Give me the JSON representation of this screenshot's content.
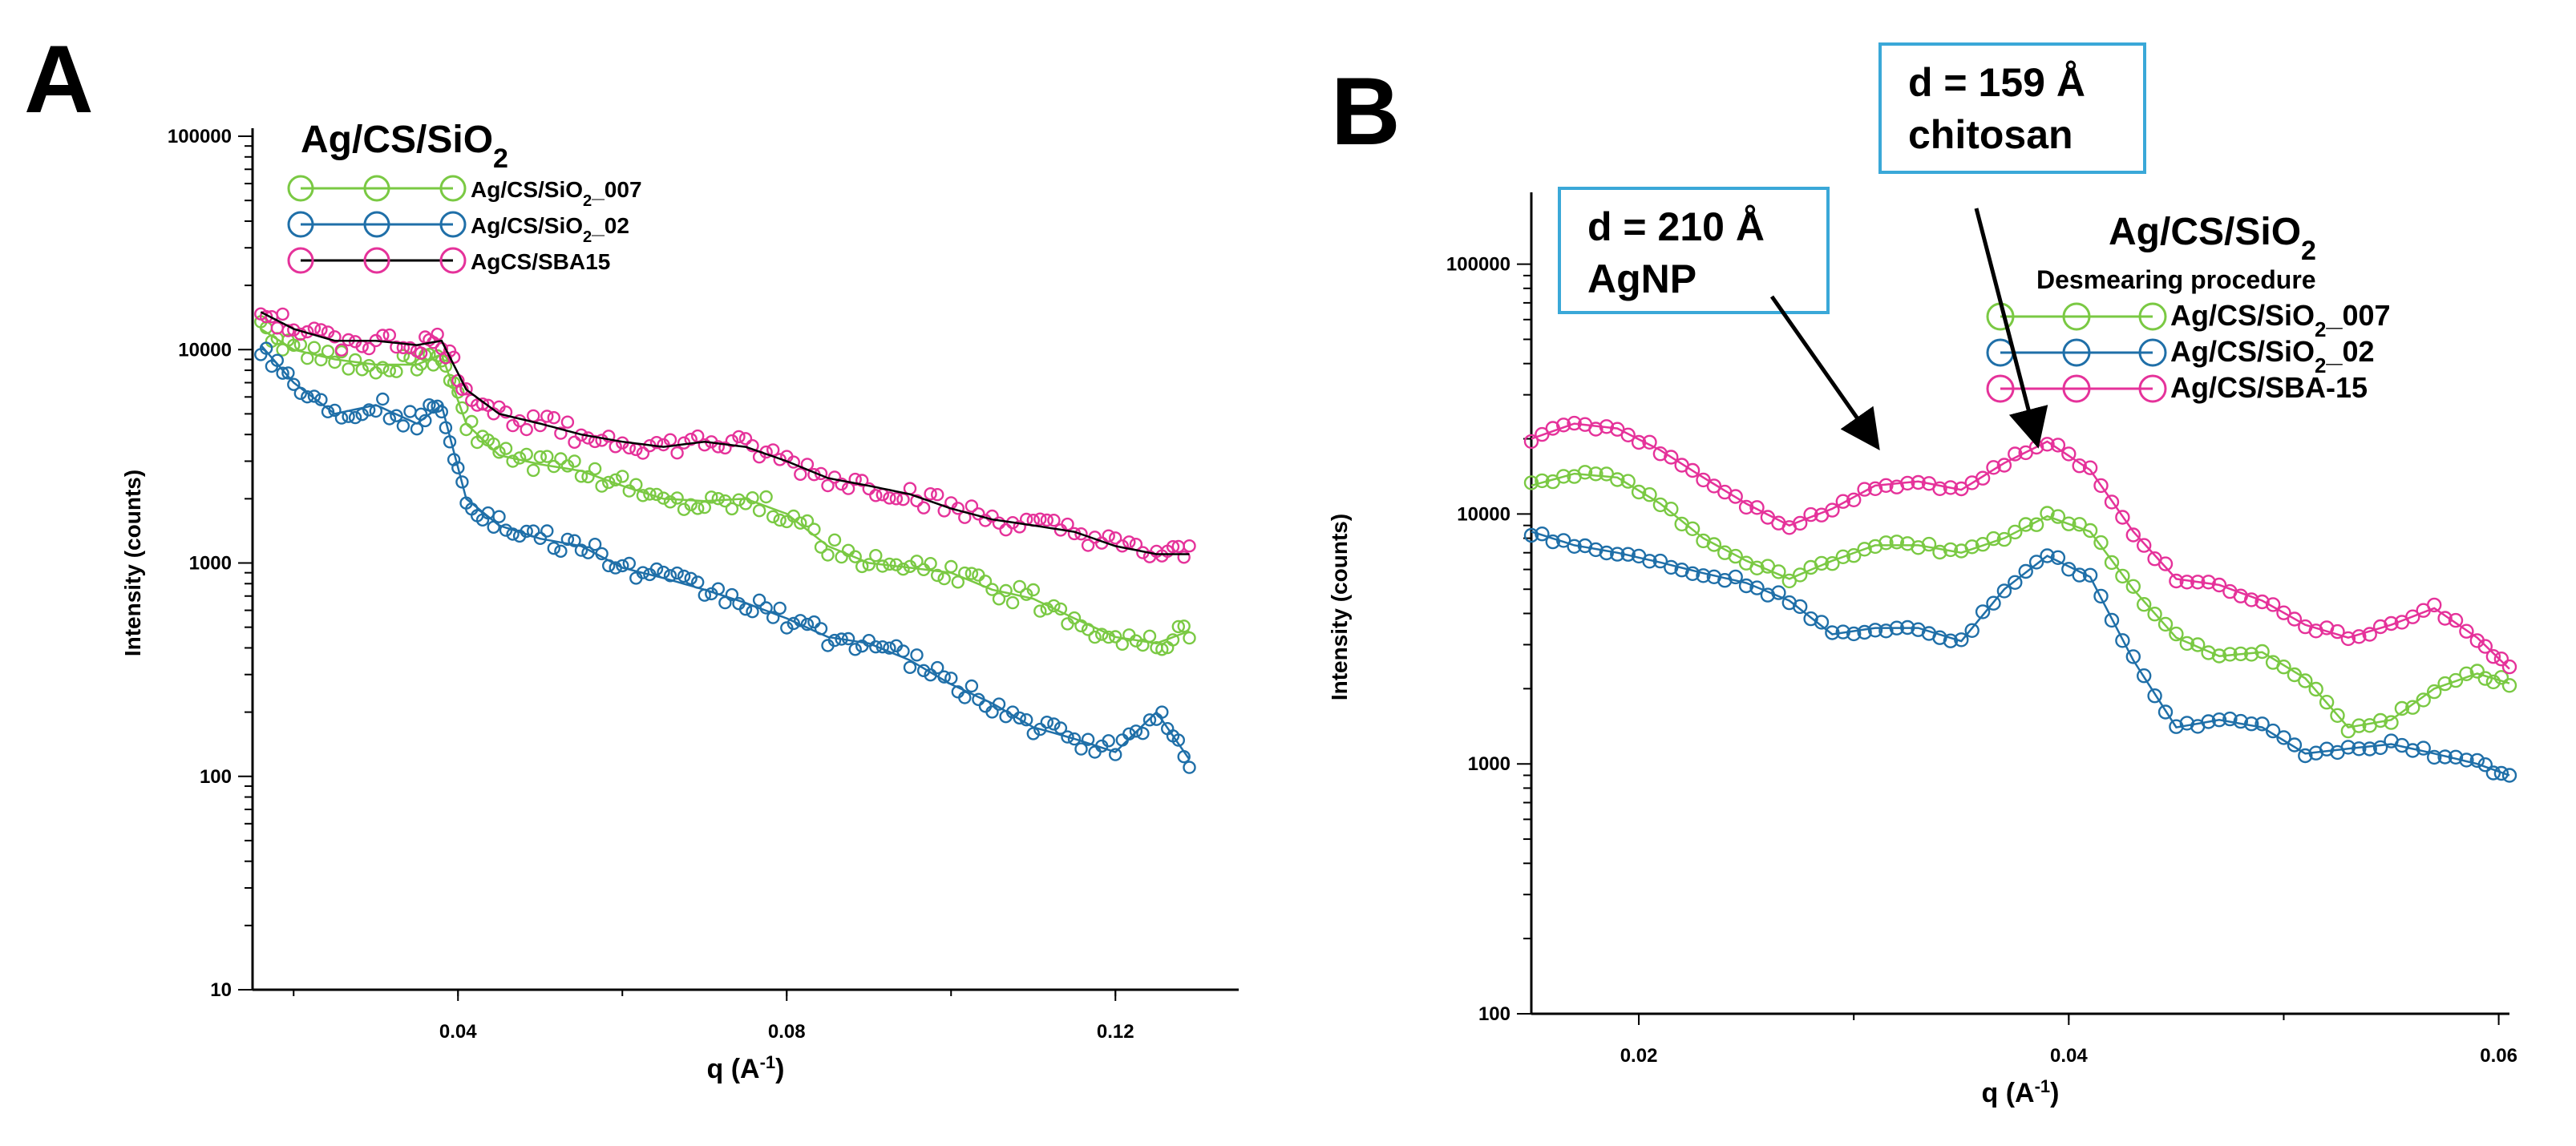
{
  "colors": {
    "green": "#7ac943",
    "blue": "#1f6fa8",
    "pink": "#e5329a",
    "black": "#000000",
    "box": "#3aa8d8"
  },
  "panel_a": {
    "letter": "A"
  },
  "panel_b": {
    "letter": "B"
  },
  "chart_data": [
    {
      "type": "scatter",
      "panel": "A",
      "title": "Ag/CS/SiO2",
      "title_main": "Ag/CS/SiO",
      "title_sub": "2",
      "xlabel_main": "q (A",
      "xlabel_sup": "-1",
      "xlabel_end": ")",
      "ylabel": "Intensity (counts)",
      "xlim": [
        0.015,
        0.135
      ],
      "ylim": [
        10,
        100000
      ],
      "yscale": "log",
      "xticks": [
        0.04,
        0.08,
        0.12
      ],
      "xtick_labels": [
        "0.04",
        "0.08",
        "0.12"
      ],
      "yticks": [
        10,
        100,
        1000,
        10000,
        100000
      ],
      "ytick_labels": [
        "10",
        "100",
        "1000",
        "10000",
        "100000"
      ],
      "legend_labels": [
        {
          "pre": "Ag/CS/SiO",
          "sub": "2",
          "post": "_007"
        },
        {
          "pre": "Ag/CS/SiO",
          "sub": "2",
          "post": "_02"
        },
        {
          "pre": "AgCS/SBA15",
          "sub": "",
          "post": ""
        }
      ],
      "series": [
        {
          "name": "Ag/CS/SiO2_007",
          "color": "green",
          "line": "green",
          "x": [
            0.016,
            0.02,
            0.025,
            0.03,
            0.035,
            0.038,
            0.041,
            0.045,
            0.05,
            0.055,
            0.06,
            0.065,
            0.07,
            0.075,
            0.08,
            0.085,
            0.09,
            0.095,
            0.1,
            0.105,
            0.11,
            0.115,
            0.12,
            0.125,
            0.129
          ],
          "y": [
            12500,
            10000,
            9000,
            8500,
            8500,
            9500,
            4500,
            3200,
            2900,
            2700,
            2300,
            2000,
            1950,
            2000,
            1700,
            1200,
            1000,
            950,
            900,
            750,
            680,
            550,
            450,
            420,
            480
          ]
        },
        {
          "name": "Ag/CS/SiO2_02",
          "color": "blue",
          "line": "blue",
          "x": [
            0.016,
            0.02,
            0.025,
            0.03,
            0.035,
            0.038,
            0.041,
            0.045,
            0.05,
            0.055,
            0.06,
            0.065,
            0.07,
            0.075,
            0.08,
            0.085,
            0.09,
            0.095,
            0.1,
            0.105,
            0.11,
            0.115,
            0.12,
            0.125,
            0.129
          ],
          "y": [
            10500,
            7000,
            5000,
            5500,
            4500,
            5500,
            2000,
            1500,
            1300,
            1200,
            950,
            850,
            750,
            650,
            550,
            450,
            420,
            350,
            270,
            220,
            170,
            150,
            130,
            200,
            120
          ]
        },
        {
          "name": "AgCS/SBA15",
          "color": "pink",
          "line": "black",
          "x": [
            0.016,
            0.02,
            0.025,
            0.03,
            0.035,
            0.038,
            0.041,
            0.045,
            0.05,
            0.055,
            0.06,
            0.065,
            0.07,
            0.075,
            0.08,
            0.085,
            0.09,
            0.095,
            0.1,
            0.105,
            0.11,
            0.115,
            0.12,
            0.125,
            0.129
          ],
          "y": [
            15000,
            12500,
            11000,
            11000,
            10500,
            11000,
            6500,
            5000,
            4500,
            4000,
            3700,
            3500,
            3700,
            3500,
            3000,
            2500,
            2300,
            2100,
            1800,
            1600,
            1500,
            1400,
            1200,
            1100,
            1100
          ]
        }
      ]
    },
    {
      "type": "scatter",
      "panel": "B",
      "title": "Ag/CS/SiO2",
      "title_main": "Ag/CS/SiO",
      "title_sub": "2",
      "subtitle": "Desmearing procedure",
      "xlabel_main": "q (A",
      "xlabel_sup": "-1",
      "xlabel_end": ")",
      "ylabel": "Intensity (counts)",
      "xlim": [
        0.015,
        0.0605
      ],
      "ylim": [
        100,
        180000
      ],
      "yscale": "log",
      "xticks": [
        0.02,
        0.04,
        0.06
      ],
      "xtick_labels": [
        "0.02",
        "0.04",
        "0.06"
      ],
      "yticks": [
        100,
        1000,
        10000,
        100000
      ],
      "ytick_labels": [
        "100",
        "1000",
        "10000",
        "100000"
      ],
      "legend_labels": [
        {
          "pre": "Ag/CS/SiO",
          "sub": "2",
          "post": "_007"
        },
        {
          "pre": "Ag/CS/SiO",
          "sub": "2",
          "post": "_02"
        },
        {
          "pre": "Ag/CS/SBA-15",
          "sub": "",
          "post": ""
        }
      ],
      "annotations": [
        {
          "line1": "d = 210 Å",
          "line2": "AgNP",
          "q": 0.031,
          "intensity": 18000
        },
        {
          "line1": "d = 159 Å",
          "line2": "chitosan",
          "q": 0.0385,
          "intensity": 18500
        }
      ],
      "series": [
        {
          "name": "Ag/CS/SiO2_007",
          "color": "green",
          "x": [
            0.015,
            0.017,
            0.019,
            0.021,
            0.023,
            0.025,
            0.027,
            0.029,
            0.031,
            0.033,
            0.035,
            0.037,
            0.039,
            0.041,
            0.043,
            0.045,
            0.047,
            0.049,
            0.051,
            0.053,
            0.055,
            0.057,
            0.059,
            0.0605
          ],
          "y": [
            13000,
            14500,
            14000,
            11000,
            8000,
            6500,
            5500,
            6500,
            7500,
            7500,
            7000,
            8000,
            9800,
            8500,
            5000,
            3200,
            2700,
            2800,
            2200,
            1400,
            1500,
            2000,
            2300,
            2100
          ]
        },
        {
          "name": "Ag/CS/SiO2_02",
          "color": "blue",
          "x": [
            0.015,
            0.017,
            0.019,
            0.021,
            0.023,
            0.025,
            0.027,
            0.029,
            0.031,
            0.033,
            0.035,
            0.037,
            0.039,
            0.041,
            0.043,
            0.045,
            0.047,
            0.049,
            0.051,
            0.053,
            0.055,
            0.057,
            0.059,
            0.0605
          ],
          "y": [
            8500,
            7500,
            7000,
            6400,
            5800,
            5300,
            4500,
            3300,
            3500,
            3500,
            3100,
            5000,
            6800,
            5600,
            2600,
            1400,
            1500,
            1400,
            1100,
            1150,
            1200,
            1100,
            1000,
            900
          ]
        },
        {
          "name": "Ag/CS/SBA-15",
          "color": "pink",
          "x": [
            0.015,
            0.017,
            0.019,
            0.021,
            0.023,
            0.025,
            0.027,
            0.029,
            0.031,
            0.033,
            0.035,
            0.037,
            0.039,
            0.041,
            0.043,
            0.045,
            0.047,
            0.049,
            0.051,
            0.053,
            0.055,
            0.057,
            0.059,
            0.0605
          ],
          "y": [
            20000,
            23000,
            22000,
            18000,
            14000,
            11000,
            9000,
            10500,
            13000,
            13500,
            12500,
            16000,
            19500,
            15000,
            8500,
            5500,
            5200,
            4500,
            3600,
            3200,
            3600,
            4200,
            3200,
            2400
          ]
        }
      ]
    }
  ]
}
